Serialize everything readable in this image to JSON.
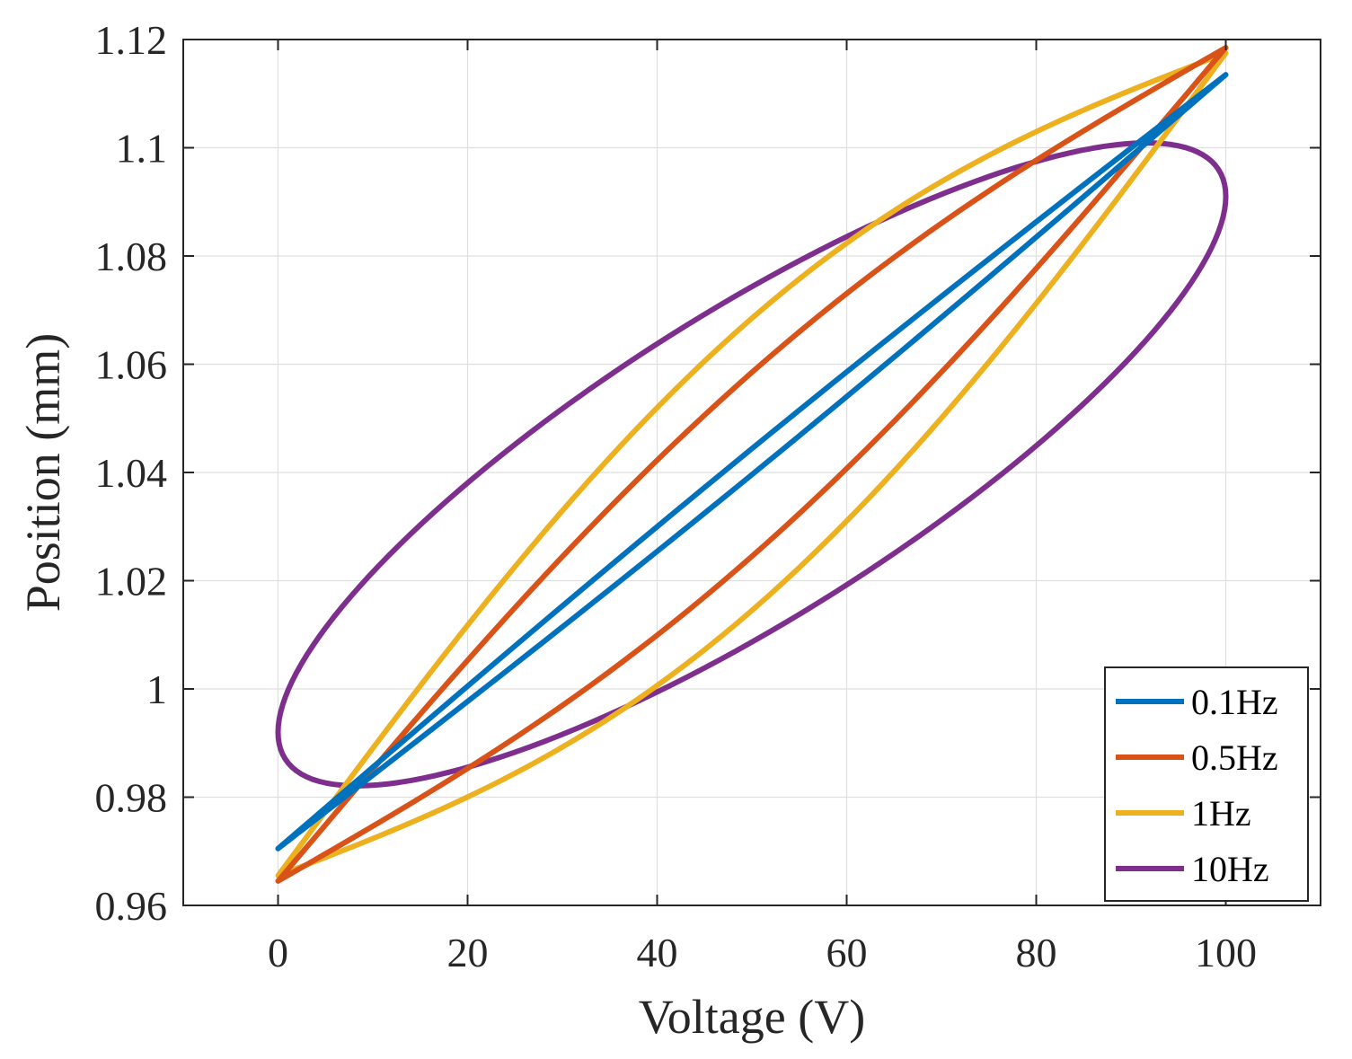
{
  "chart_data": {
    "type": "line",
    "title": "",
    "xlabel": "Voltage (V)",
    "ylabel": "Position (mm)",
    "xlim": [
      -10,
      110
    ],
    "ylim": [
      0.96,
      1.12
    ],
    "xticks": [
      0,
      20,
      40,
      60,
      80,
      100
    ],
    "xtick_labels": [
      "0",
      "20",
      "40",
      "60",
      "80",
      "100"
    ],
    "yticks": [
      0.96,
      0.98,
      1.0,
      1.02,
      1.04,
      1.06,
      1.08,
      1.1,
      1.12
    ],
    "ytick_labels": [
      "0.96",
      "0.98",
      "1",
      "1.02",
      "1.04",
      "1.06",
      "1.08",
      "1.1",
      "1.12"
    ],
    "grid": true,
    "legend_position": "bottom-right",
    "series": [
      {
        "name": "0.1Hz",
        "color": "#0072BD",
        "shape": "hysteresis-loop",
        "x_min": 0,
        "x_max": 100,
        "y_at_x_min": 0.9705,
        "y_at_x_max": 1.1135,
        "half_width": 0.0012,
        "bow": 0.0
      },
      {
        "name": "0.5Hz",
        "color": "#D95319",
        "shape": "hysteresis-loop",
        "x_min": 0,
        "x_max": 100,
        "y_at_x_min": 0.9645,
        "y_at_x_max": 1.1185,
        "half_width": 0.0085,
        "bow": 0.0
      },
      {
        "name": "1Hz",
        "color": "#EDB120",
        "shape": "hysteresis-loop",
        "x_min": 0,
        "x_max": 100,
        "y_at_x_min": 0.9655,
        "y_at_x_max": 1.1175,
        "half_width": 0.0135,
        "bow": 0.0
      },
      {
        "name": "10Hz",
        "color": "#7E2F8E",
        "shape": "ellipse",
        "x_min": 0,
        "x_max": 100,
        "y_at_x_min": 0.992,
        "y_at_x_max": 1.091,
        "y_min": 0.9822,
        "y_max": 1.101
      }
    ]
  }
}
